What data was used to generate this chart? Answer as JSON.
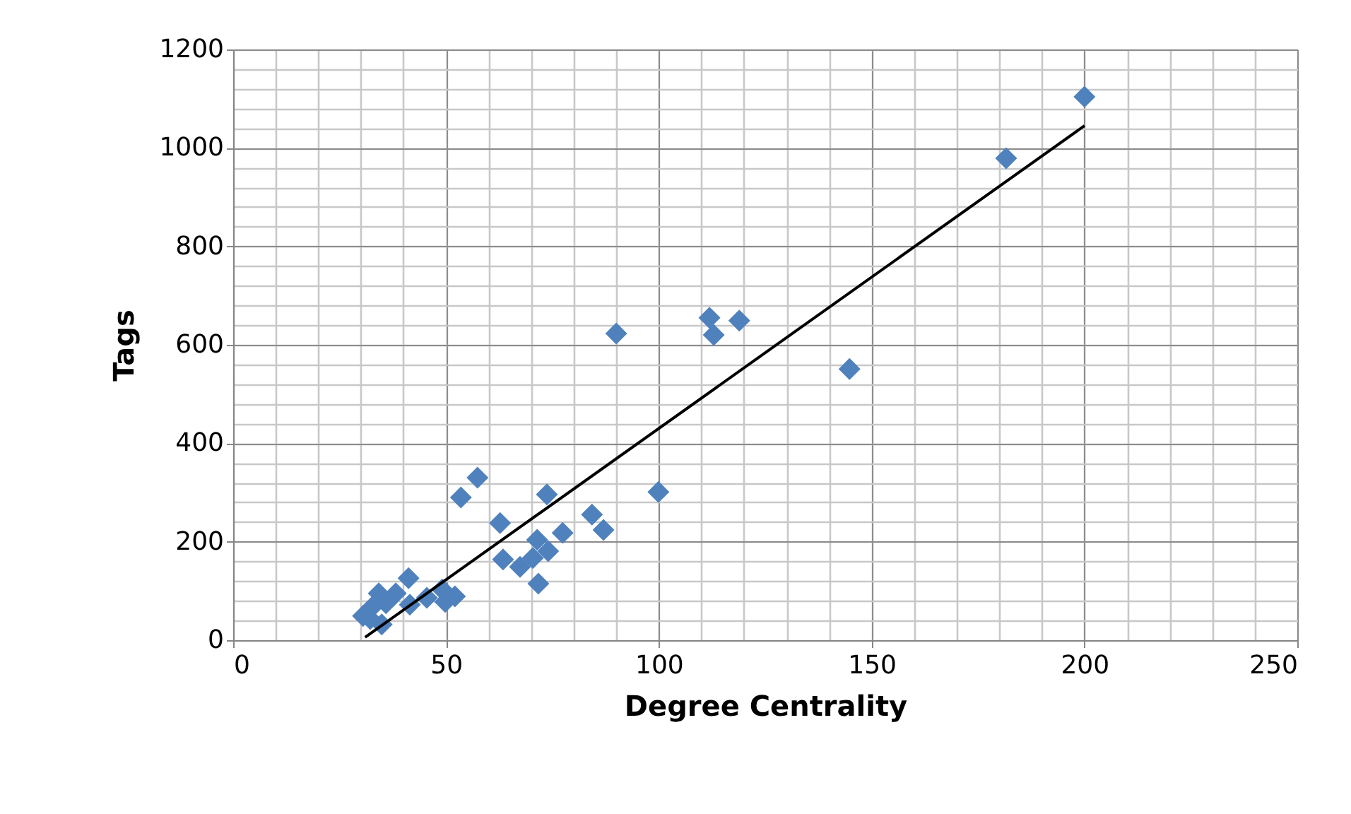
{
  "chart_data": {
    "type": "scatter",
    "xlabel": "Degree Centrality",
    "ylabel": "Tags",
    "xlim": [
      0,
      250
    ],
    "xticks": [
      0,
      50,
      100,
      150,
      200,
      250
    ],
    "ylim": [
      0,
      1200
    ],
    "yticks": [
      0,
      200,
      400,
      600,
      800,
      1000,
      1200
    ],
    "grid": true,
    "marker": "diamond",
    "series": [
      {
        "color": "#4f81bd",
        "x": [
          200,
          181.6,
          144.8,
          118.9,
          111.9,
          112.9,
          90,
          99.9,
          57.4,
          53.5,
          73.7,
          62.7,
          84.3,
          87,
          77.4,
          71.4,
          74,
          63.4,
          67.4,
          70.4,
          71.7,
          41.2,
          49.1,
          52.1,
          49.8,
          45.5,
          41.5,
          38.2,
          34.2,
          35.9,
          32.5,
          30.5,
          34.9,
          32.2
        ],
        "values": [
          1104,
          979,
          551,
          649,
          655,
          620,
          623,
          301,
          330,
          290,
          296,
          238,
          255,
          224,
          218,
          204,
          181,
          164,
          149,
          167,
          115,
          126,
          103,
          89,
          78,
          86,
          72,
          95,
          95,
          75,
          66,
          49,
          32,
          43
        ]
      },
      {
        "type": "line",
        "color": "#000000",
        "x": [
          31,
          200
        ],
        "values": [
          6,
          1045
        ],
        "marker": "none",
        "line_style": "solid"
      }
    ]
  }
}
